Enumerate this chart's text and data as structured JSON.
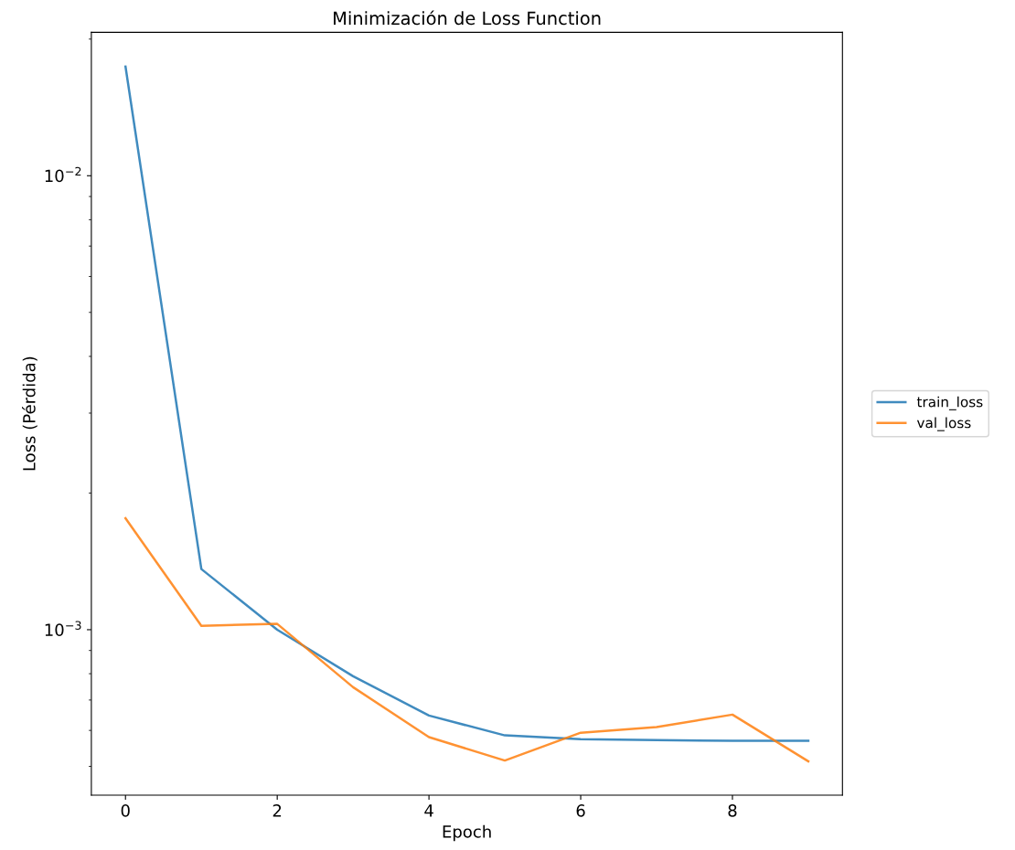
{
  "chart_data": {
    "type": "line",
    "title": "Minimización de Loss Function",
    "xlabel": "Epoch",
    "ylabel": "Loss (Pérdida)",
    "x": [
      0,
      1,
      2,
      3,
      4,
      5,
      6,
      7,
      8,
      9
    ],
    "series": [
      {
        "name": "train_loss",
        "color": "#1f77b4",
        "values": [
          0.0174,
          0.00136,
          0.001,
          0.00079,
          0.000647,
          0.000585,
          0.000574,
          0.000571,
          0.000569,
          0.000569
        ]
      },
      {
        "name": "val_loss",
        "color": "#ff7f0e",
        "values": [
          0.00176,
          0.00102,
          0.00103,
          0.000747,
          0.00058,
          0.000515,
          0.000593,
          0.00061,
          0.00065,
          0.000513
        ]
      }
    ],
    "log": "y",
    "xlim": [
      -0.45,
      9.45
    ],
    "ylim": [
      0.000432,
      0.0207
    ],
    "xticks": [
      0,
      2,
      4,
      6,
      8
    ],
    "yticks": [
      {
        "value": 0.001,
        "label": "10$^{−3}$"
      },
      {
        "value": 0.01,
        "label": "10$^{−2}$"
      }
    ],
    "grid": false,
    "legend": "right"
  }
}
